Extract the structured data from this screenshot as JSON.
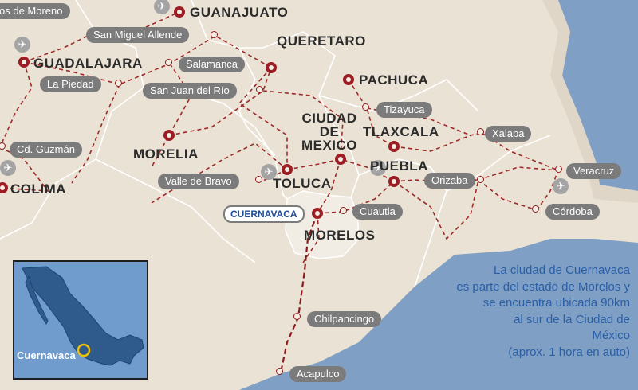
{
  "state_capitals": {
    "guanajuato": "GUANAJUATO",
    "queretaro": "QUERETARO",
    "guadalajara": "GUADALAJARA",
    "pachuca": "PACHUCA",
    "morelia": "MORELIA",
    "tlaxcala": "TLAXCALA",
    "puebla": "PUEBLA",
    "colima": "COLIMA",
    "toluca": "TOLUCA",
    "morelos": "MORELOS",
    "ciudad_de_mexico": [
      "CIUDAD",
      "DE",
      "MEXICO"
    ]
  },
  "towns": {
    "lagos_de_moreno": "os de Moreno",
    "san_miguel_allende": "San Miguel Allende",
    "salamanca": "Salamanca",
    "la_piedad": "La Piedad",
    "san_juan_del_rio": "San Juan del Río",
    "tizayuca": "Tizayuca",
    "xalapa": "Xalapa",
    "cd_guzman": "Cd. Guzmán",
    "veracruz": "Veracruz",
    "valle_de_bravo": "Valle de Bravo",
    "orizaba": "Orizaba",
    "cuautla": "Cuautla",
    "cordoba": "Córdoba",
    "chilpancingo": "Chilpancingo",
    "acapulco": "Acapulco"
  },
  "highlight": {
    "city": "CUERNAVACA"
  },
  "inset": {
    "label": "Cuernavaca"
  },
  "info_text": [
    "La ciudad de Cuernavaca",
    "es parte del estado de Morelos y",
    "se encuentra ubicada 90km",
    "al sur de la Ciudad de",
    "México",
    "(aprox. 1 hora en auto)"
  ],
  "colors": {
    "land": "#eae2d4",
    "sea": "#7f9fc4",
    "roads": "#9e2a2a",
    "borders": "#ffffff",
    "label_pill": "#7b7b7b",
    "info_text": "#2a5fa8",
    "highlight_ring": "#f2c200"
  },
  "icons": {
    "airport": "airplane-icon",
    "capital": "capital-city-marker",
    "town": "town-marker"
  }
}
